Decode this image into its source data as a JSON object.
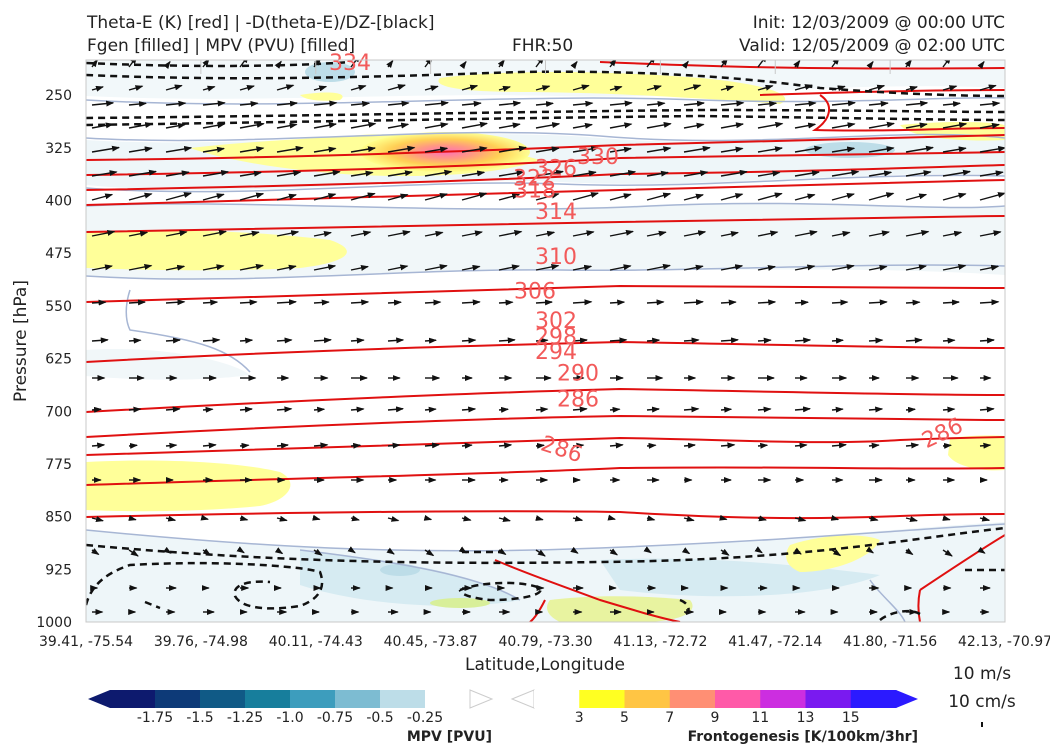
{
  "header": {
    "left1": "Theta-E (K) [red] | -D(theta-E)/DZ-[black]",
    "left2": "Fgen [filled] | MPV (PVU) [filled]",
    "center": "FHR:50",
    "right1": "Init: 12/03/2009 @ 00:00 UTC",
    "right2": "Valid: 12/05/2009 @ 02:00 UTC"
  },
  "chart_data": {
    "type": "cross-section contour",
    "xlabel": "Latitude,Longitude",
    "ylabel": "Pressure [hPa]",
    "y_ticks": [
      "250",
      "325",
      "400",
      "475",
      "550",
      "625",
      "700",
      "775",
      "850",
      "925",
      "1000"
    ],
    "x_ticks": [
      "39.41, -75.54",
      "39.76, -74.98",
      "40.11, -74.43",
      "40.45, -73.87",
      "40.79, -73.30",
      "41.13, -72.72",
      "41.47, -72.14",
      "41.80, -71.56",
      "42.13, -70.97"
    ],
    "y_range_hPa": [
      1000,
      200
    ],
    "theta_e_labels_K": [
      {
        "label": "334",
        "p": 203
      },
      {
        "label": "330",
        "p": 337
      },
      {
        "label": "326",
        "p": 353
      },
      {
        "label": "322",
        "p": 367
      },
      {
        "label": "318",
        "p": 384
      },
      {
        "label": "314",
        "p": 415
      },
      {
        "label": "310",
        "p": 479
      },
      {
        "label": "306",
        "p": 528
      },
      {
        "label": "302",
        "p": 570
      },
      {
        "label": "298",
        "p": 593
      },
      {
        "label": "294",
        "p": 614
      },
      {
        "label": "290",
        "p": 645
      },
      {
        "label": "286",
        "p": 682
      },
      {
        "label": "286",
        "p": 753
      },
      {
        "label": "286",
        "p": 730
      }
    ],
    "mpv_colorbar": {
      "title": "MPV [PVU]",
      "tick_labels": [
        "-1.75",
        "-1.5",
        "-1.25",
        "-1.0",
        "-0.75",
        "-0.5",
        "-0.25"
      ],
      "colors": [
        "#0d1a6e",
        "#0d3a78",
        "#105a86",
        "#177e9c",
        "#3d9dbd",
        "#7dbcd2",
        "#bddde8",
        "#ffffff"
      ]
    },
    "fgen_colorbar": {
      "title": "Frontogenesis [K/100km/3hr]",
      "tick_labels": [
        "3",
        "5",
        "7",
        "9",
        "11",
        "13",
        "15"
      ],
      "colors": [
        "#ffffff",
        "#ffff22",
        "#ffc544",
        "#ff8f74",
        "#ff5aa8",
        "#cc2ee0",
        "#7a1af0",
        "#2b1aff"
      ]
    },
    "wind_reference": {
      "label1": "10 m/s",
      "label2": "10 cm/s"
    }
  }
}
